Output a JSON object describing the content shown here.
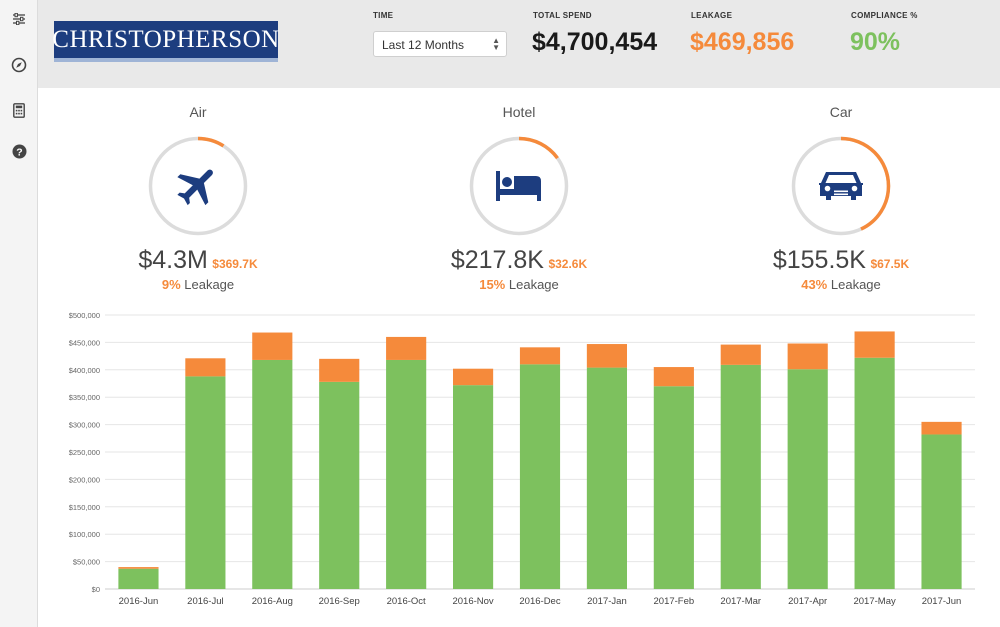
{
  "sidebar": {
    "items": [
      {
        "icon": "sliders-icon"
      },
      {
        "icon": "compass-icon"
      },
      {
        "icon": "calculator-icon"
      },
      {
        "icon": "help-icon"
      }
    ]
  },
  "header": {
    "logo_text": "CHRISTOPHERSON",
    "time_label": "TIME",
    "time_value": "Last 12 Months",
    "total_spend_label": "TOTAL SPEND",
    "total_spend_value": "$4,700,454",
    "leakage_label": "LEAKAGE",
    "leakage_value": "$469,856",
    "compliance_label": "COMPLIANCE %",
    "compliance_value": "90%"
  },
  "colors": {
    "green": "#7dc15e",
    "orange": "#f58a3b",
    "navy": "#1d3d7f",
    "ring_track": "#dcdcdc"
  },
  "categories": [
    {
      "name": "Air",
      "amount": "$4.3M",
      "leakage_amount": "$369.7K",
      "leakage_pct": "9%",
      "leakage_label": "Leakage",
      "ring_fraction": 0.09,
      "icon": "airplane-icon"
    },
    {
      "name": "Hotel",
      "amount": "$217.8K",
      "leakage_amount": "$32.6K",
      "leakage_pct": "15%",
      "leakage_label": "Leakage",
      "ring_fraction": 0.15,
      "icon": "bed-icon"
    },
    {
      "name": "Car",
      "amount": "$155.5K",
      "leakage_amount": "$67.5K",
      "leakage_pct": "43%",
      "leakage_label": "Leakage",
      "ring_fraction": 0.43,
      "icon": "car-icon"
    }
  ],
  "chart_data": {
    "type": "bar",
    "stacked": true,
    "categories": [
      "2016-Jun",
      "2016-Jul",
      "2016-Aug",
      "2016-Sep",
      "2016-Oct",
      "2016-Nov",
      "2016-Dec",
      "2017-Jan",
      "2017-Feb",
      "2017-Mar",
      "2017-Apr",
      "2017-May",
      "2017-Jun"
    ],
    "series": [
      {
        "color": "#7dc15e",
        "values": [
          37000,
          388000,
          418000,
          378000,
          418000,
          372000,
          410000,
          404000,
          370000,
          409000,
          401000,
          422000,
          282000
        ]
      },
      {
        "color": "#f58a3b",
        "values": [
          3000,
          33000,
          50000,
          42000,
          42000,
          30000,
          31000,
          43000,
          35000,
          37000,
          47000,
          48000,
          23000
        ]
      }
    ],
    "ylim": [
      0,
      500000
    ],
    "yticks": [
      0,
      50000,
      100000,
      150000,
      200000,
      250000,
      300000,
      350000,
      400000,
      450000,
      500000
    ],
    "ytick_labels": [
      "$0",
      "$50,000",
      "$100,000",
      "$150,000",
      "$200,000",
      "$250,000",
      "$300,000",
      "$350,000",
      "$400,000",
      "$450,000",
      "$500,000"
    ],
    "grid": true
  }
}
